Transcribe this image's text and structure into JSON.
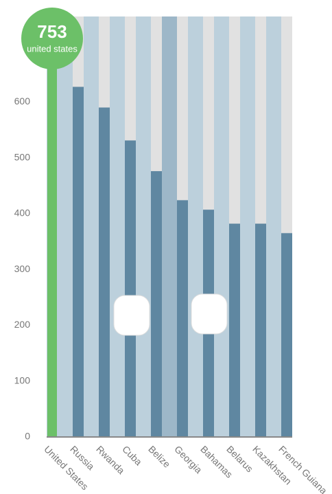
{
  "chart_data": {
    "type": "bar",
    "categories": [
      "United States",
      "Russia",
      "Rwanda",
      "Cuba",
      "Belize",
      "Georgia",
      "Bahamas",
      "Belarus",
      "Kazakhstan",
      "French Guiana"
    ],
    "values": [
      753,
      627,
      590,
      531,
      476,
      424,
      407,
      382,
      382,
      365
    ],
    "color": "#5f87a1",
    "highlight_color": "#6cc068",
    "badge_label": "united states",
    "ylim": [
      0,
      753
    ],
    "yticks": [
      0,
      100,
      200,
      300,
      400,
      500,
      600
    ]
  }
}
